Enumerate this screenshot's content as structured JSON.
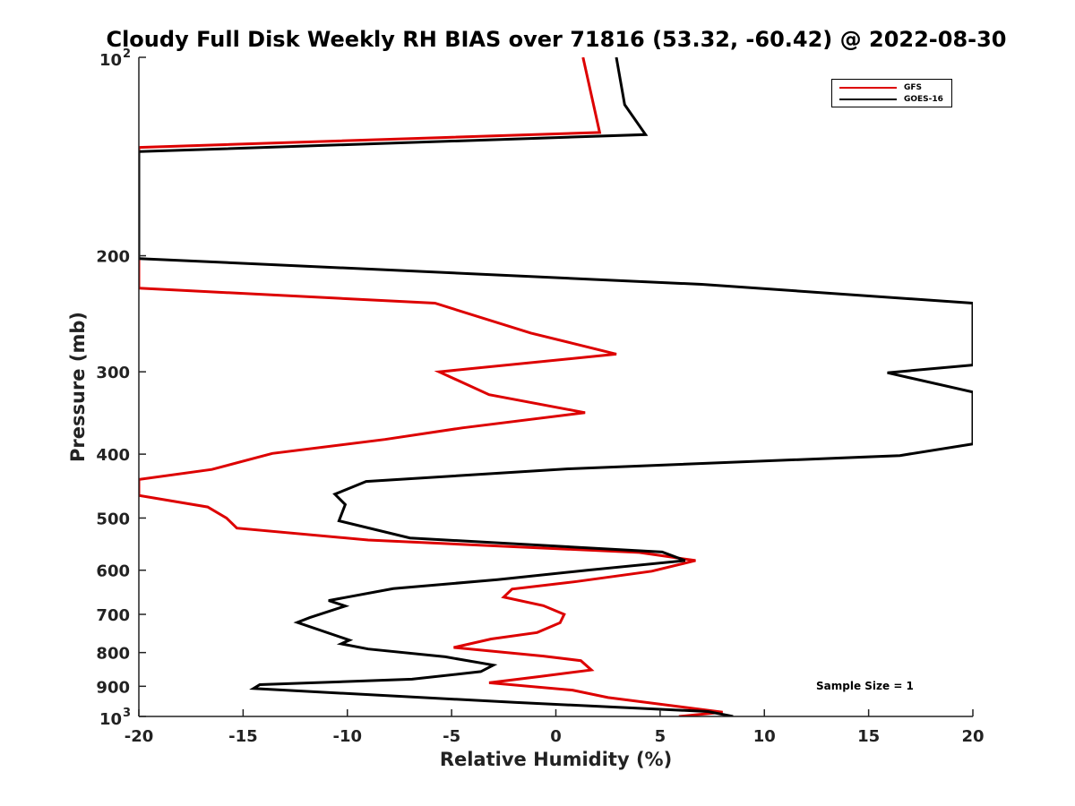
{
  "chart_data": {
    "type": "line",
    "title": "Cloudy Full Disk Weekly RH BIAS over 71816 (53.32, -60.42) @ 2022-08-30",
    "xlabel": "Relative Humidity (%)",
    "ylabel": "Pressure (mb)",
    "xlim": [
      -20,
      20
    ],
    "ylim": [
      100,
      1000
    ],
    "y_scale": "log",
    "y_reversed": true,
    "x_ticks": [
      "-20",
      "-15",
      "-10",
      "-5",
      "0",
      "5",
      "10",
      "15",
      "20"
    ],
    "y_ticks": [
      {
        "value": 100,
        "label": "10",
        "sup": "2"
      },
      {
        "value": 200,
        "label": "200",
        "sup": ""
      },
      {
        "value": 300,
        "label": "300",
        "sup": ""
      },
      {
        "value": 400,
        "label": "400",
        "sup": ""
      },
      {
        "value": 500,
        "label": "500",
        "sup": ""
      },
      {
        "value": 600,
        "label": "600",
        "sup": ""
      },
      {
        "value": 700,
        "label": "700",
        "sup": ""
      },
      {
        "value": 800,
        "label": "800",
        "sup": ""
      },
      {
        "value": 900,
        "label": "900",
        "sup": ""
      },
      {
        "value": 1000,
        "label": "10",
        "sup": "3"
      }
    ],
    "annotation": "Sample Size = 1",
    "legend_position": "top-right",
    "series": [
      {
        "name": "GFS",
        "color": "#dd0000",
        "points": [
          [
            1.3,
            100
          ],
          [
            2.1,
            130
          ],
          [
            -20,
            137
          ],
          [
            -20,
            224
          ],
          [
            -5.8,
            236
          ],
          [
            -1.2,
            262
          ],
          [
            2.9,
            282
          ],
          [
            -5.6,
            300
          ],
          [
            -3.2,
            325
          ],
          [
            1.4,
            346
          ],
          [
            -4.5,
            365
          ],
          [
            -8.2,
            380
          ],
          [
            -13.6,
            399
          ],
          [
            -16.5,
            422
          ],
          [
            -20,
            437
          ],
          [
            -20,
            462
          ],
          [
            -16.7,
            481
          ],
          [
            -15.8,
            500
          ],
          [
            -15.3,
            518
          ],
          [
            -9.0,
            540
          ],
          [
            4.0,
            564
          ],
          [
            6.7,
            580
          ],
          [
            4.6,
            602
          ],
          [
            1.0,
            624
          ],
          [
            -2.1,
            641
          ],
          [
            -2.5,
            659
          ],
          [
            -0.6,
            679
          ],
          [
            0.4,
            700
          ],
          [
            0.2,
            721
          ],
          [
            -0.9,
            746
          ],
          [
            -3.1,
            763
          ],
          [
            -4.9,
            786
          ],
          [
            -0.6,
            810
          ],
          [
            1.2,
            823
          ],
          [
            1.7,
            850
          ],
          [
            -0.8,
            870
          ],
          [
            -3.2,
            889
          ],
          [
            0.8,
            912
          ],
          [
            2.5,
            936
          ],
          [
            8.0,
            985
          ],
          [
            5.9,
            1000
          ]
        ]
      },
      {
        "name": "GOES-16",
        "color": "#000000",
        "points": [
          [
            2.9,
            100
          ],
          [
            3.3,
            118
          ],
          [
            4.3,
            131
          ],
          [
            -20,
            139
          ],
          [
            -20,
            202
          ],
          [
            7.0,
            221
          ],
          [
            20,
            236
          ],
          [
            20,
            293
          ],
          [
            15.9,
            301
          ],
          [
            20,
            322
          ],
          [
            20,
            386
          ],
          [
            16.5,
            402
          ],
          [
            0.6,
            421
          ],
          [
            -9.1,
            440
          ],
          [
            -10.6,
            460
          ],
          [
            -10.1,
            477
          ],
          [
            -10.4,
            505
          ],
          [
            -7.0,
            536
          ],
          [
            5.1,
            563
          ],
          [
            6.2,
            580
          ],
          [
            1.5,
            600
          ],
          [
            -2.8,
            620
          ],
          [
            -7.8,
            640
          ],
          [
            -10.9,
            667
          ],
          [
            -10.1,
            680
          ],
          [
            -11.8,
            708
          ],
          [
            -12.4,
            720
          ],
          [
            -9.9,
            766
          ],
          [
            -10.3,
            776
          ],
          [
            -9.0,
            790
          ],
          [
            -5.3,
            812
          ],
          [
            -3.0,
            836
          ],
          [
            -3.6,
            855
          ],
          [
            -6.9,
            878
          ],
          [
            -14.2,
            895
          ],
          [
            -14.5,
            907
          ],
          [
            -2.0,
            952
          ],
          [
            7.3,
            983
          ],
          [
            8.5,
            1000
          ]
        ]
      }
    ]
  }
}
